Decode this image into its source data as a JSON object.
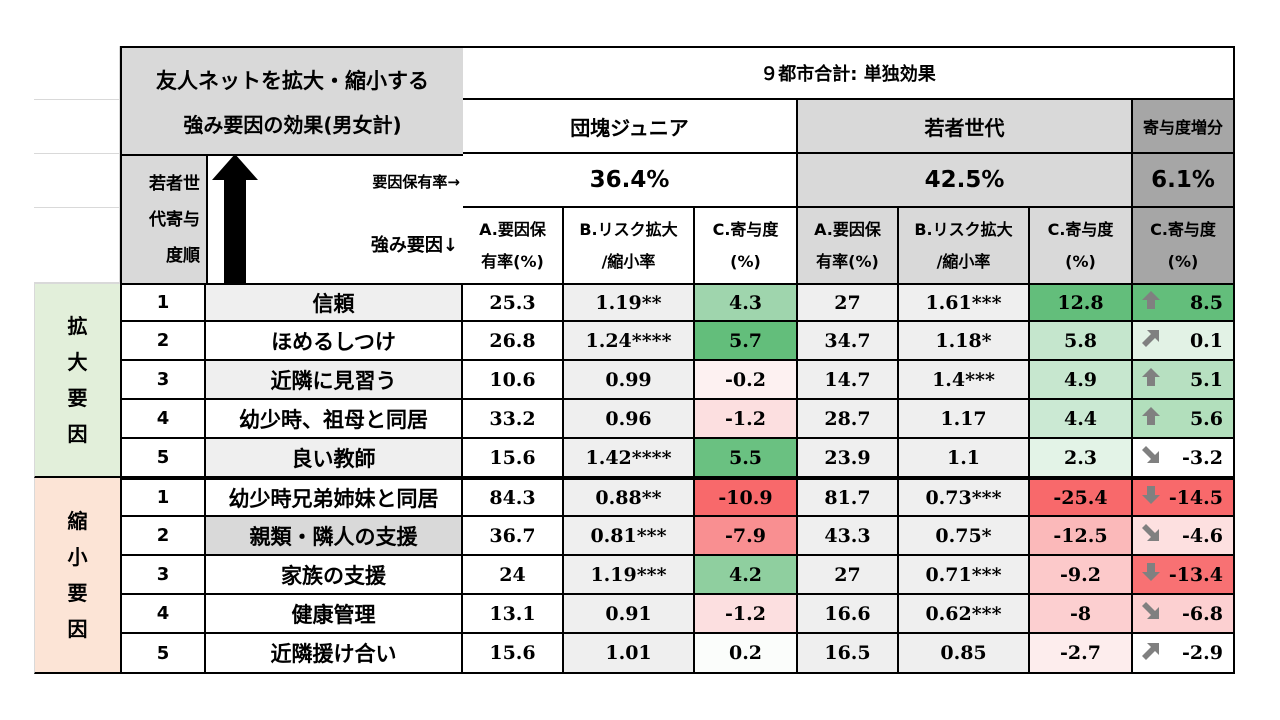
{
  "title_line1": "友人ネットを拡大・縮小する",
  "title_line2": "強み要因の効果(男女計)",
  "top_header": "９都市合計: 単独効果",
  "group1": "団塊ジュニア",
  "group2": "若者世代",
  "group3": "寄与度増分",
  "rank_label": "若者世\n代寄与\n度順",
  "rate_label": "要因保有率→",
  "factor_label": "強み要因↓",
  "rate1": "36.4%",
  "rate2": "42.5%",
  "rate3": "6.1%",
  "colA": "A.要因保\n有率(%)",
  "colB": "B.リスク拡大\n/縮小率",
  "colC": "C.寄与度\n(%)",
  "expand_label": "拡\n大\n要\n因",
  "shrink_label": "縮\n小\n要\n因",
  "colors": {
    "expand_bg": "#e2efda",
    "shrink_bg": "#fce4d6",
    "gray": "#d9d9d9",
    "light": "#efefef",
    "green_strong": "#63be7b",
    "red_strong": "#f8696b"
  },
  "rows": [
    {
      "rank": "1",
      "name": "信頼",
      "a1": "25.3",
      "b1": "1.19**",
      "c1": "4.3",
      "a2": "27",
      "b2": "1.61***",
      "c2": "12.8",
      "d": "8.5",
      "icon": "arrow-up-icon"
    },
    {
      "rank": "2",
      "name": "ほめるしつけ",
      "a1": "26.8",
      "b1": "1.24****",
      "c1": "5.7",
      "a2": "34.7",
      "b2": "1.18*",
      "c2": "5.8",
      "d": "0.1",
      "icon": "arrow-up-right-icon"
    },
    {
      "rank": "3",
      "name": "近隣に見習う",
      "a1": "10.6",
      "b1": "0.99",
      "c1": "-0.2",
      "a2": "14.7",
      "b2": "1.4***",
      "c2": "4.9",
      "d": "5.1",
      "icon": "arrow-up-icon"
    },
    {
      "rank": "4",
      "name": "幼少時、祖母と同居",
      "a1": "33.2",
      "b1": "0.96",
      "c1": "-1.2",
      "a2": "28.7",
      "b2": "1.17",
      "c2": "4.4",
      "d": "5.6",
      "icon": "arrow-up-icon"
    },
    {
      "rank": "5",
      "name": "良い教師",
      "a1": "15.6",
      "b1": "1.42****",
      "c1": "5.5",
      "a2": "23.9",
      "b2": "1.1",
      "c2": "2.3",
      "d": "-3.2",
      "icon": "arrow-down-right-icon"
    },
    {
      "rank": "1",
      "name": "幼少時兄弟姉妹と同居",
      "a1": "84.3",
      "b1": "0.88**",
      "c1": "-10.9",
      "a2": "81.7",
      "b2": "0.73***",
      "c2": "-25.4",
      "d": "-14.5",
      "icon": "arrow-down-icon"
    },
    {
      "rank": "2",
      "name": "親類・隣人の支援",
      "a1": "36.7",
      "b1": "0.81***",
      "c1": "-7.9",
      "a2": "43.3",
      "b2": "0.75*",
      "c2": "-12.5",
      "d": "-4.6",
      "icon": "arrow-down-right-icon"
    },
    {
      "rank": "3",
      "name": "家族の支援",
      "a1": "24",
      "b1": "1.19***",
      "c1": "4.2",
      "a2": "27",
      "b2": "0.71***",
      "c2": "-9.2",
      "d": "-13.4",
      "icon": "arrow-down-icon"
    },
    {
      "rank": "4",
      "name": "健康管理",
      "a1": "13.1",
      "b1": "0.91",
      "c1": "-1.2",
      "a2": "16.6",
      "b2": "0.62***",
      "c2": "-8",
      "d": "-6.8",
      "icon": "arrow-down-right-icon"
    },
    {
      "rank": "5",
      "name": "近隣援け合い",
      "a1": "15.6",
      "b1": "1.01",
      "c1": "0.2",
      "a2": "16.5",
      "b2": "0.85",
      "c2": "-2.7",
      "d": "-2.9",
      "icon": "arrow-up-right-icon"
    }
  ],
  "cell_colors": [
    {
      "name": "#efefef",
      "c1": "#9fd5ad",
      "b2": "#efefef",
      "c2": "#63be7b",
      "d": "#63be7b"
    },
    {
      "name": "#ffffff",
      "c1": "#63be7b",
      "b2": "#efefef",
      "c2": "#c5e6cd",
      "d": "#e2f2e5"
    },
    {
      "name": "#efefef",
      "c1": "#fdf1f1",
      "b2": "#efefef",
      "c2": "#c7e7cf",
      "d": "#b7e0c1"
    },
    {
      "name": "#ffffff",
      "c1": "#fcdfe0",
      "b2": "#efefef",
      "c2": "#cbe9d3",
      "d": "#b2dfbc"
    },
    {
      "name": "#efefef",
      "c1": "#6ac181",
      "b2": "#efefef",
      "c2": "#e3f3e7",
      "d": "#ffffff"
    },
    {
      "name": "#ffffff",
      "c1": "#f8696b",
      "b2": "#efefef",
      "c2": "#f8696b",
      "d": "#f8696b"
    },
    {
      "name": "#d9d9d9",
      "c1": "#f98f91",
      "b2": "#efefef",
      "c2": "#fbb9ba",
      "d": "#fde0e0"
    },
    {
      "name": "#ffffff",
      "c1": "#8fcf9f",
      "b2": "#efefef",
      "c2": "#fcc9ca",
      "d": "#f87173"
    },
    {
      "name": "#ffffff",
      "c1": "#fcdfe0",
      "b2": "#efefef",
      "c2": "#fccfd0",
      "d": "#fcd0d1"
    },
    {
      "name": "#ffffff",
      "c1": "#fbfdfb",
      "b2": "#efefef",
      "c2": "#fdeded",
      "d": "#ffffff"
    }
  ]
}
